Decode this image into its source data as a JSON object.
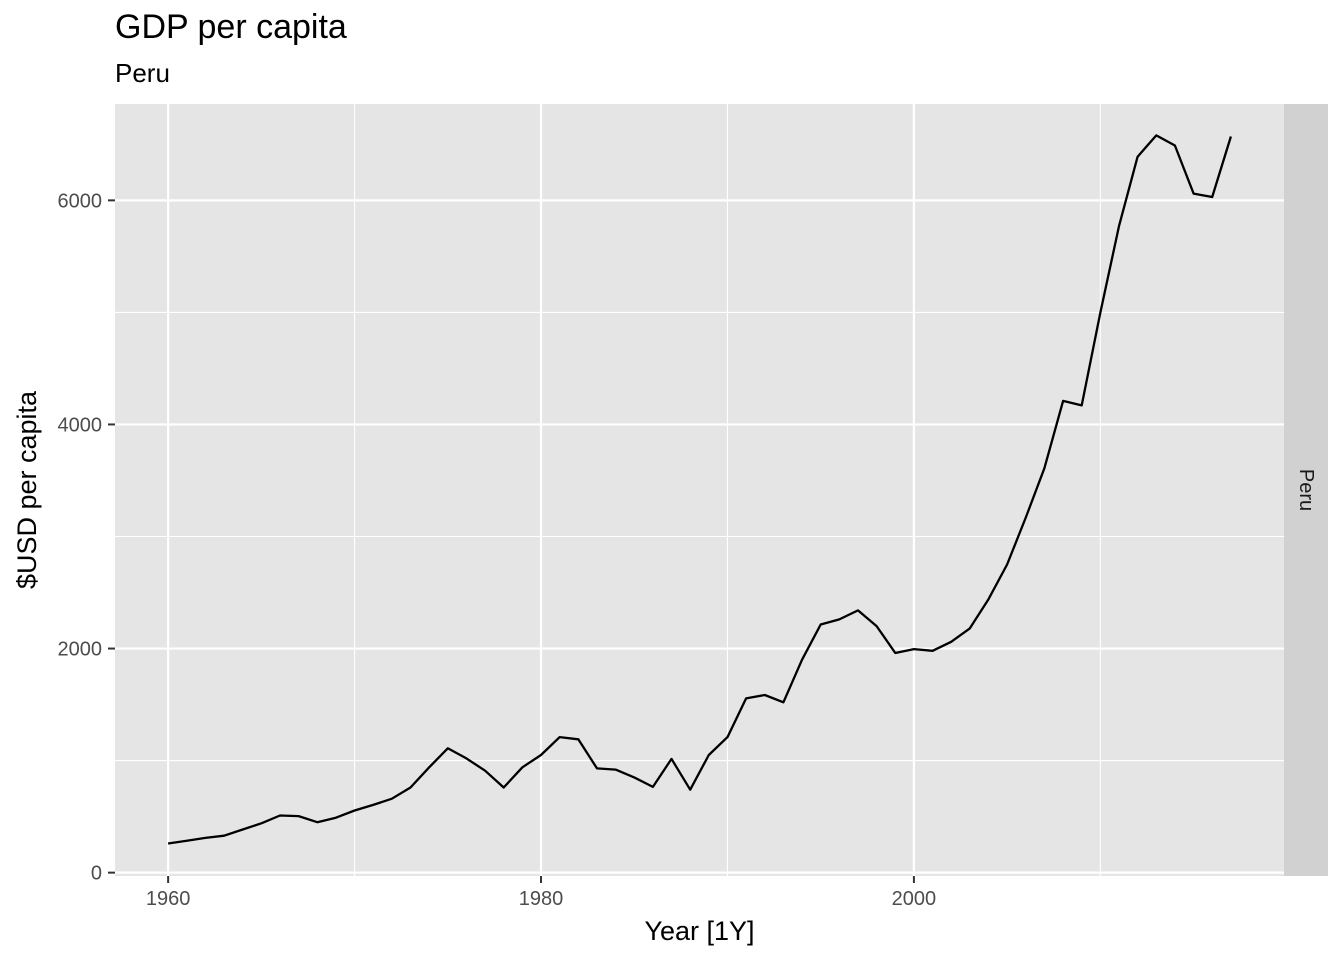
{
  "chart_data": {
    "type": "line",
    "title": "GDP per capita",
    "subtitle": "Peru",
    "xlabel": "Year [1Y]",
    "ylabel": "$USD per capita",
    "facet_label": "Peru",
    "xlim": [
      1957.15,
      2019.85
    ],
    "ylim": [
      -30,
      6860
    ],
    "x_ticks": [
      1960,
      1980,
      2000
    ],
    "x_tick_labels": [
      "1960",
      "1980",
      "2000"
    ],
    "x_minor_ticks": [
      1970,
      1990,
      2010
    ],
    "y_ticks": [
      0,
      2000,
      4000,
      6000
    ],
    "y_tick_labels": [
      "0",
      "2000",
      "4000",
      "6000"
    ],
    "y_minor_ticks": [
      1000,
      3000,
      5000
    ],
    "grid": true,
    "colors": {
      "panel": "#e5e5e5",
      "grid": "#ffffff",
      "strip": "#d1d1d1",
      "line": "#000000"
    },
    "x": [
      1960,
      1961,
      1962,
      1963,
      1964,
      1965,
      1966,
      1967,
      1968,
      1969,
      1970,
      1971,
      1972,
      1973,
      1974,
      1975,
      1976,
      1977,
      1978,
      1979,
      1980,
      1981,
      1982,
      1983,
      1984,
      1985,
      1986,
      1987,
      1988,
      1989,
      1990,
      1991,
      1992,
      1993,
      1994,
      1995,
      1996,
      1997,
      1998,
      1999,
      2000,
      2001,
      2002,
      2003,
      2004,
      2005,
      2006,
      2007,
      2008,
      2009,
      2010,
      2011,
      2012,
      2013,
      2014,
      2015,
      2016,
      2017
    ],
    "series": [
      {
        "values": [
          260,
          285,
          310,
          330,
          385,
          440,
          510,
          505,
          450,
          490,
          555,
          605,
          660,
          760,
          940,
          1110,
          1020,
          910,
          760,
          940,
          1050,
          1210,
          1190,
          930,
          920,
          850,
          765,
          1015,
          740,
          1050,
          1210,
          1555,
          1585,
          1520,
          1900,
          2215,
          2260,
          2340,
          2200,
          1960,
          1995,
          1980,
          2060,
          2180,
          2440,
          2750,
          3170,
          3610,
          4210,
          4170,
          5000,
          5770,
          6390,
          6580,
          6490,
          6060,
          6030,
          6570
        ]
      }
    ]
  }
}
